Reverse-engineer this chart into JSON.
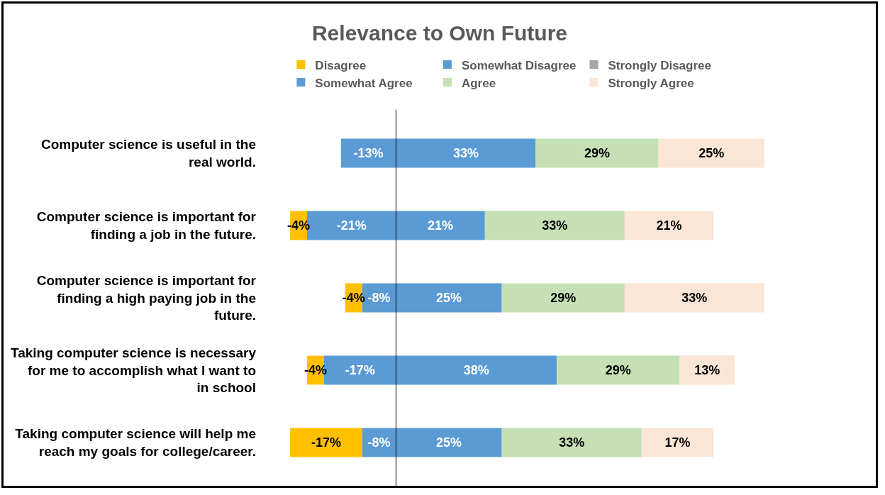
{
  "chart_data": {
    "type": "bar",
    "orientation": "horizontal",
    "stacked": true,
    "title": "Relevance to Own Future",
    "categories": [
      "Computer science is useful in the real world.",
      "Computer science is important for finding a job in the future.",
      "Computer science is important for finding a high paying job in the future.",
      "Taking computer science is necessary for me to accomplish what I want to in school",
      "Taking computer science will help me reach my goals for college/career."
    ],
    "series": [
      {
        "name": "Somewhat Disagree",
        "color": "#5b9bd5",
        "values": [
          -13,
          -21,
          -8,
          -17,
          -8
        ],
        "value_labels": [
          "-13%",
          "-21%",
          "-8%",
          "-17%",
          "-8%"
        ]
      },
      {
        "name": "Disagree",
        "color": "#ffc000",
        "values": [
          null,
          -4,
          -4,
          -4,
          -17
        ],
        "value_labels": [
          null,
          "-4%",
          "-4%",
          "-4%",
          "-17%"
        ]
      },
      {
        "name": "Strongly Disagree",
        "color": "#a5a5a5",
        "values": [
          null,
          null,
          null,
          null,
          null
        ]
      },
      {
        "name": "Somewhat Agree",
        "color": "#5b9bd5",
        "values": [
          33,
          21,
          25,
          38,
          25
        ],
        "value_labels": [
          "33%",
          "21%",
          "25%",
          "38%",
          "25%"
        ]
      },
      {
        "name": "Agree",
        "color": "#c5e0b4",
        "values": [
          29,
          33,
          29,
          29,
          33
        ],
        "value_labels": [
          "29%",
          "33%",
          "29%",
          "29%",
          "33%"
        ]
      },
      {
        "name": "Strongly Agree",
        "color": "#fbe5d6",
        "values": [
          25,
          21,
          33,
          13,
          17
        ],
        "value_labels": [
          "25%",
          "21%",
          "33%",
          "13%",
          "17%"
        ]
      }
    ],
    "ref_lines": [
      {
        "axis": "x",
        "value": 0,
        "color": "#000000"
      }
    ],
    "tick_labels": "y",
    "legend": "top"
  }
}
